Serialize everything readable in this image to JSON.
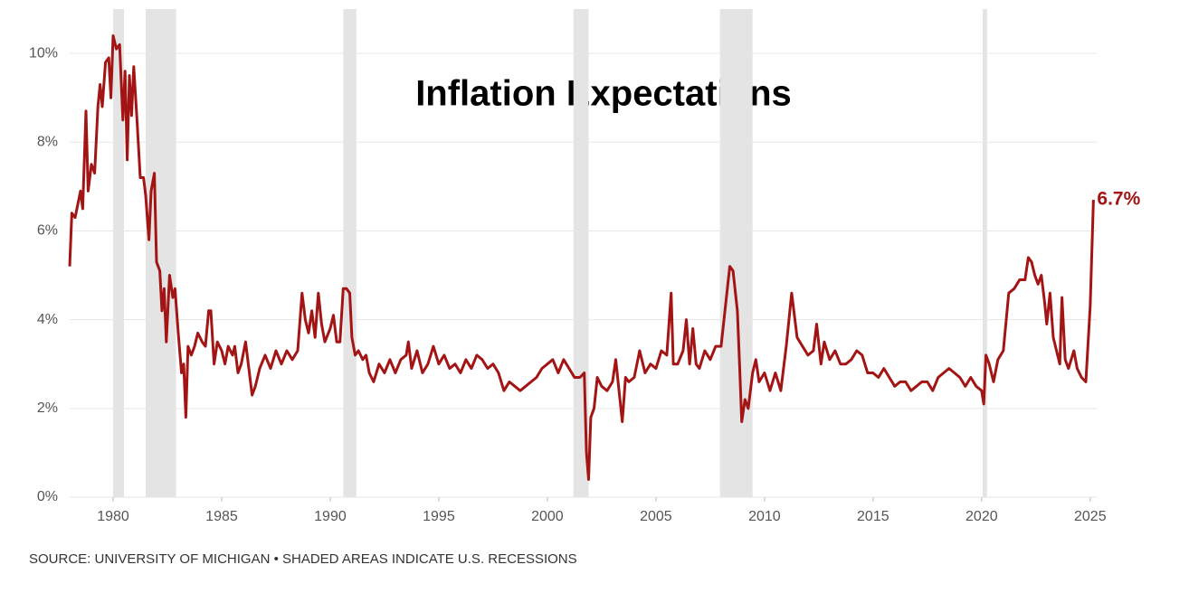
{
  "chart_data": {
    "type": "line",
    "title": "Inflation Expectations",
    "source": "SOURCE: UNIVERSITY OF MICHIGAN • SHADED AREAS INDICATE U.S. RECESSIONS",
    "color": "#a31515",
    "recession_color": "#e4e4e4",
    "grid": true,
    "xlim": [
      1978,
      2025.3
    ],
    "ylim": [
      0,
      11
    ],
    "xticks": [
      1980,
      1985,
      1990,
      1995,
      2000,
      2005,
      2010,
      2015,
      2020,
      2025
    ],
    "yticks": [
      {
        "value": 0,
        "label": "0%"
      },
      {
        "value": 2,
        "label": "2%"
      },
      {
        "value": 4,
        "label": "4%"
      },
      {
        "value": 6,
        "label": "6%"
      },
      {
        "value": 8,
        "label": "8%"
      },
      {
        "value": 10,
        "label": "10%"
      }
    ],
    "recessions": [
      [
        1980.0,
        1980.5
      ],
      [
        1981.5,
        1982.9
      ],
      [
        1990.6,
        1991.2
      ],
      [
        2001.2,
        2001.9
      ],
      [
        2007.95,
        2009.45
      ],
      [
        2020.05,
        2020.25
      ]
    ],
    "annotations": [
      {
        "text": "6.7%",
        "x": 2025.15,
        "y": 6.7
      }
    ],
    "x": [
      1978.0,
      1978.1,
      1978.25,
      1978.5,
      1978.6,
      1978.75,
      1978.85,
      1979.0,
      1979.15,
      1979.3,
      1979.4,
      1979.5,
      1979.65,
      1979.8,
      1979.9,
      1980.0,
      1980.15,
      1980.3,
      1980.45,
      1980.55,
      1980.65,
      1980.75,
      1980.85,
      1980.95,
      1981.1,
      1981.25,
      1981.4,
      1981.5,
      1981.65,
      1981.75,
      1981.9,
      1982.0,
      1982.15,
      1982.25,
      1982.35,
      1982.45,
      1982.6,
      1982.75,
      1982.85,
      1983.0,
      1983.15,
      1983.25,
      1983.35,
      1983.45,
      1983.6,
      1983.75,
      1983.9,
      1984.1,
      1984.25,
      1984.4,
      1984.5,
      1984.65,
      1984.8,
      1985.0,
      1985.15,
      1985.3,
      1985.5,
      1985.6,
      1985.75,
      1985.9,
      1986.1,
      1986.25,
      1986.4,
      1986.55,
      1986.75,
      1987.0,
      1987.25,
      1987.5,
      1987.75,
      1988.0,
      1988.25,
      1988.5,
      1988.7,
      1988.85,
      1989.0,
      1989.15,
      1989.3,
      1989.45,
      1989.6,
      1989.75,
      1990.0,
      1990.15,
      1990.3,
      1990.45,
      1990.6,
      1990.75,
      1990.9,
      1991.0,
      1991.15,
      1991.3,
      1991.5,
      1991.65,
      1991.8,
      1992.0,
      1992.25,
      1992.5,
      1992.75,
      1993.0,
      1993.25,
      1993.5,
      1993.6,
      1993.75,
      1994.0,
      1994.25,
      1994.5,
      1994.75,
      1995.0,
      1995.25,
      1995.5,
      1995.75,
      1996.0,
      1996.25,
      1996.5,
      1996.75,
      1997.0,
      1997.25,
      1997.5,
      1997.75,
      1998.0,
      1998.25,
      1998.5,
      1998.75,
      1999.0,
      1999.25,
      1999.5,
      1999.75,
      2000.0,
      2000.25,
      2000.5,
      2000.75,
      2001.0,
      2001.25,
      2001.5,
      2001.7,
      2001.8,
      2001.9,
      2002.0,
      2002.15,
      2002.3,
      2002.5,
      2002.75,
      2003.0,
      2003.15,
      2003.3,
      2003.45,
      2003.6,
      2003.75,
      2004.0,
      2004.25,
      2004.5,
      2004.75,
      2005.0,
      2005.25,
      2005.5,
      2005.7,
      2005.8,
      2006.0,
      2006.25,
      2006.4,
      2006.55,
      2006.7,
      2006.85,
      2007.0,
      2007.25,
      2007.5,
      2007.75,
      2008.0,
      2008.2,
      2008.4,
      2008.55,
      2008.75,
      2008.85,
      2008.95,
      2009.1,
      2009.25,
      2009.45,
      2009.6,
      2009.75,
      2010.0,
      2010.25,
      2010.5,
      2010.75,
      2011.0,
      2011.25,
      2011.5,
      2011.75,
      2012.0,
      2012.25,
      2012.4,
      2012.6,
      2012.75,
      2013.0,
      2013.25,
      2013.5,
      2013.75,
      2014.0,
      2014.25,
      2014.5,
      2014.75,
      2015.0,
      2015.25,
      2015.5,
      2015.75,
      2016.0,
      2016.25,
      2016.5,
      2016.75,
      2017.0,
      2017.25,
      2017.5,
      2017.75,
      2018.0,
      2018.25,
      2018.5,
      2018.75,
      2019.0,
      2019.25,
      2019.5,
      2019.75,
      2020.0,
      2020.1,
      2020.2,
      2020.35,
      2020.55,
      2020.75,
      2021.0,
      2021.25,
      2021.5,
      2021.75,
      2022.0,
      2022.15,
      2022.3,
      2022.45,
      2022.6,
      2022.75,
      2022.9,
      2023.0,
      2023.15,
      2023.3,
      2023.45,
      2023.6,
      2023.7,
      2023.85,
      2024.0,
      2024.25,
      2024.4,
      2024.6,
      2024.8,
      2025.0,
      2025.15
    ],
    "values": [
      5.2,
      6.4,
      6.3,
      6.9,
      6.5,
      8.7,
      6.9,
      7.5,
      7.3,
      8.8,
      9.3,
      8.8,
      9.8,
      9.9,
      9.0,
      10.4,
      10.1,
      10.2,
      8.5,
      9.6,
      7.6,
      9.5,
      8.6,
      9.7,
      8.5,
      7.2,
      7.2,
      6.8,
      5.8,
      6.9,
      7.3,
      5.3,
      5.1,
      4.2,
      4.7,
      3.5,
      5.0,
      4.5,
      4.7,
      3.7,
      2.8,
      3.0,
      1.8,
      3.4,
      3.2,
      3.4,
      3.7,
      3.5,
      3.4,
      4.2,
      4.2,
      3.0,
      3.5,
      3.3,
      3.0,
      3.4,
      3.2,
      3.4,
      2.8,
      3.0,
      3.5,
      2.9,
      2.3,
      2.5,
      2.9,
      3.2,
      2.9,
      3.3,
      3.0,
      3.3,
      3.1,
      3.3,
      4.6,
      4.0,
      3.7,
      4.2,
      3.6,
      4.6,
      3.9,
      3.5,
      3.8,
      4.1,
      3.5,
      3.5,
      4.7,
      4.7,
      4.6,
      3.6,
      3.2,
      3.3,
      3.1,
      3.2,
      2.8,
      2.6,
      3.0,
      2.8,
      3.1,
      2.8,
      3.1,
      3.2,
      3.5,
      2.9,
      3.3,
      2.8,
      3.0,
      3.4,
      3.0,
      3.2,
      2.9,
      3.0,
      2.8,
      3.1,
      2.9,
      3.2,
      3.1,
      2.9,
      3.0,
      2.8,
      2.4,
      2.6,
      2.5,
      2.4,
      2.5,
      2.6,
      2.7,
      2.9,
      3.0,
      3.1,
      2.8,
      3.1,
      2.9,
      2.7,
      2.7,
      2.8,
      1.0,
      0.4,
      1.8,
      2.0,
      2.7,
      2.5,
      2.4,
      2.6,
      3.1,
      2.4,
      1.7,
      2.7,
      2.6,
      2.7,
      3.3,
      2.8,
      3.0,
      2.9,
      3.3,
      3.2,
      4.6,
      3.0,
      3.0,
      3.3,
      4.0,
      3.0,
      3.8,
      3.0,
      2.9,
      3.3,
      3.1,
      3.4,
      3.4,
      4.3,
      5.2,
      5.1,
      4.2,
      3.0,
      1.7,
      2.2,
      2.0,
      2.8,
      3.1,
      2.6,
      2.8,
      2.4,
      2.8,
      2.4,
      3.4,
      4.6,
      3.6,
      3.4,
      3.2,
      3.3,
      3.9,
      3.0,
      3.5,
      3.1,
      3.3,
      3.0,
      3.0,
      3.1,
      3.3,
      3.2,
      2.8,
      2.8,
      2.7,
      2.9,
      2.7,
      2.5,
      2.6,
      2.6,
      2.4,
      2.5,
      2.6,
      2.6,
      2.4,
      2.7,
      2.8,
      2.9,
      2.8,
      2.7,
      2.5,
      2.7,
      2.5,
      2.4,
      2.1,
      3.2,
      3.0,
      2.6,
      3.1,
      3.3,
      4.6,
      4.7,
      4.9,
      4.9,
      5.4,
      5.3,
      5.0,
      4.8,
      5.0,
      4.4,
      3.9,
      4.6,
      3.6,
      3.3,
      3.0,
      4.5,
      3.1,
      2.9,
      3.3,
      2.9,
      2.7,
      2.6,
      4.3,
      6.7
    ]
  }
}
